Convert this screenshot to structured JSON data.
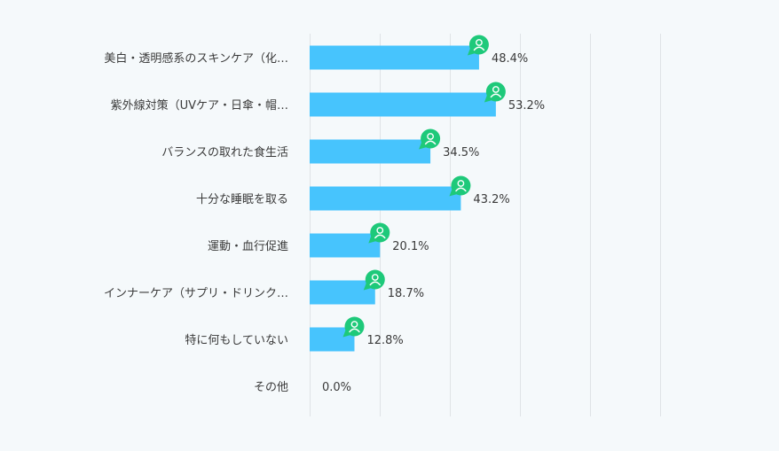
{
  "chart_data": {
    "type": "bar",
    "orientation": "horizontal",
    "title": "",
    "xlabel": "",
    "ylabel": "",
    "xlim": [
      0,
      100
    ],
    "grid": true,
    "categories": [
      "美白・透明感系のスキンケア（化…",
      "紫外線対策（UVケア・日傘・帽…",
      "バランスの取れた食生活",
      "十分な睡眠を取る",
      "運動・血行促進",
      "インナーケア（サプリ・ドリンク…",
      "特に何もしていない",
      "その他"
    ],
    "values": [
      48.4,
      53.2,
      34.5,
      43.2,
      20.1,
      18.7,
      12.8,
      0.0
    ],
    "value_labels": [
      "48.4%",
      "53.2%",
      "34.5%",
      "43.2%",
      "20.1%",
      "18.7%",
      "12.8%",
      "0.0%"
    ],
    "marker_icon": "user-chat-icon"
  },
  "colors": {
    "bar": "#47c4fd",
    "marker": "#1ec97a",
    "grid": "#dfe3e6",
    "text": "#3a3a3a",
    "background": "#f5f9fb"
  }
}
